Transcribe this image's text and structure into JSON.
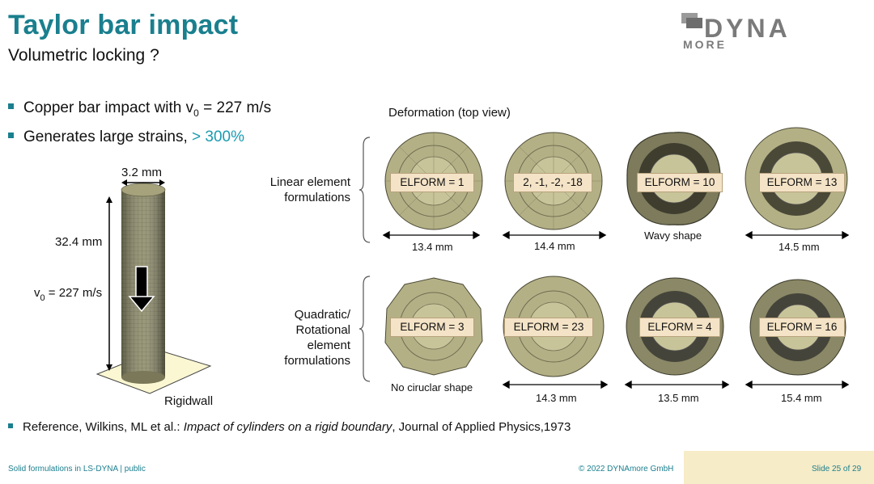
{
  "header": {
    "title": "Taylor bar impact",
    "subtitle": "Volumetric locking ?"
  },
  "logo": {
    "text": "DYNA",
    "subtext": "MORE"
  },
  "bullets": {
    "b1_prefix": "Copper bar impact with v",
    "b1_sub": "0",
    "b1_suffix": " = 227 m/s",
    "b2_text": "Generates large strains, ",
    "b2_accent": "> 300%"
  },
  "bar_figure": {
    "width_label": "3.2 mm",
    "height_label": "32.4 mm",
    "velocity_prefix": "v",
    "velocity_sub": "0",
    "velocity_suffix": " = 227 m/s",
    "rigidwall_label": "Rigidwall"
  },
  "deformation": {
    "heading": "Deformation (top view)",
    "group1_label": "Linear element formulations",
    "group2_label": "Quadratic/ Rotational element formulations",
    "row1": [
      {
        "elform": "ELFORM = 1",
        "caption": "13.4 mm"
      },
      {
        "elform": "2, -1, -2, -18",
        "caption": "14.4 mm"
      },
      {
        "elform": "ELFORM = 10",
        "caption": "Wavy shape"
      },
      {
        "elform": "ELFORM = 13",
        "caption": "14.5 mm"
      }
    ],
    "row2": [
      {
        "elform": "ELFORM = 3",
        "caption": "No ciruclar shape"
      },
      {
        "elform": "ELFORM = 23",
        "caption": "14.3 mm"
      },
      {
        "elform": "ELFORM = 4",
        "caption": "13.5 mm"
      },
      {
        "elform": "ELFORM = 16",
        "caption": "15.4 mm"
      }
    ]
  },
  "reference": {
    "prefix": "Reference, Wilkins, ML et al.: ",
    "italic": "Impact of cylinders on a rigid boundary",
    "suffix": ", Journal of Applied Physics,1973"
  },
  "footer": {
    "left": "Solid formulations in LS-DYNA | public",
    "center": "© 2022 DYNAmore GmbH",
    "right": "Slide 25 of 29"
  },
  "colors": {
    "accent": "#1a7f8e",
    "accent_light": "#1a9bb0",
    "elform_bg": "#f4e3c6",
    "disk": "#b8b487",
    "footer_box": "#f7ecc8"
  }
}
